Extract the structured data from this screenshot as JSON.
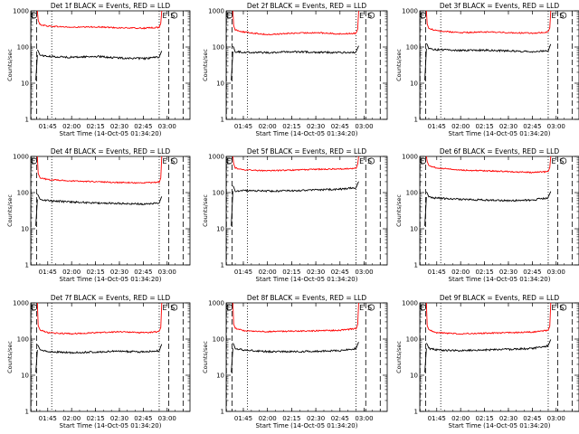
{
  "chart_data": [
    {
      "type": "line",
      "title": "Det 1f BLACK = Events, RED = LLD",
      "xlabel": "Start Time (14-Oct-05 01:34:20)",
      "ylabel": "Counts/sec",
      "yscale": "log",
      "ylim": [
        1,
        1000
      ],
      "y_ticks": [
        "1",
        "10",
        "100",
        "1000"
      ],
      "x_ticks": [
        "01:45",
        "02:00",
        "02:15",
        "02:30",
        "02:45",
        "03:00"
      ],
      "markers": [
        "E",
        "S"
      ],
      "series": [
        {
          "color": "#ff0000",
          "x": [
            "01:40",
            "01:45",
            "02:00",
            "02:15",
            "02:30",
            "02:45",
            "02:55"
          ],
          "values": [
            420,
            380,
            350,
            360,
            340,
            330,
            350
          ]
        },
        {
          "color": "#000000",
          "x": [
            "01:40",
            "01:45",
            "02:00",
            "02:15",
            "02:30",
            "02:45",
            "02:55"
          ],
          "values": [
            60,
            55,
            52,
            55,
            50,
            48,
            52
          ]
        }
      ]
    },
    {
      "type": "line",
      "title": "Det 2f BLACK = Events, RED = LLD",
      "xlabel": "Start Time (14-Oct-05 01:34:20)",
      "ylabel": "Counts/sec",
      "yscale": "log",
      "ylim": [
        1,
        1000
      ],
      "y_ticks": [
        "1",
        "10",
        "100",
        "1000"
      ],
      "x_ticks": [
        "01:45",
        "02:00",
        "02:15",
        "02:30",
        "02:45",
        "03:00"
      ],
      "markers": [
        "E",
        "S"
      ],
      "series": [
        {
          "color": "#ff0000",
          "x": [
            "01:40",
            "01:45",
            "02:00",
            "02:15",
            "02:30",
            "02:45",
            "02:55"
          ],
          "values": [
            300,
            260,
            220,
            240,
            250,
            230,
            240
          ]
        },
        {
          "color": "#000000",
          "x": [
            "01:40",
            "01:45",
            "02:00",
            "02:15",
            "02:30",
            "02:45",
            "02:55"
          ],
          "values": [
            75,
            72,
            70,
            74,
            72,
            70,
            72
          ]
        }
      ]
    },
    {
      "type": "line",
      "title": "Det 3f BLACK = Events, RED = LLD",
      "xlabel": "Start Time (14-Oct-05 01:34:20)",
      "ylabel": "Counts/sec",
      "yscale": "log",
      "ylim": [
        1,
        1000
      ],
      "y_ticks": [
        "1",
        "10",
        "100",
        "1000"
      ],
      "x_ticks": [
        "01:45",
        "02:00",
        "02:15",
        "02:30",
        "02:45",
        "03:00"
      ],
      "markers": [
        "E",
        "S"
      ],
      "series": [
        {
          "color": "#ff0000",
          "x": [
            "01:40",
            "01:45",
            "02:00",
            "02:15",
            "02:30",
            "02:45",
            "02:55"
          ],
          "values": [
            330,
            280,
            250,
            260,
            250,
            240,
            260
          ]
        },
        {
          "color": "#000000",
          "x": [
            "01:40",
            "01:45",
            "02:00",
            "02:15",
            "02:30",
            "02:45",
            "02:55"
          ],
          "values": [
            90,
            85,
            80,
            82,
            78,
            75,
            80
          ]
        }
      ]
    },
    {
      "type": "line",
      "title": "Det 4f BLACK = Events, RED = LLD",
      "xlabel": "Start Time (14-Oct-05 01:34:20)",
      "ylabel": "Counts/sec",
      "yscale": "log",
      "ylim": [
        1,
        1000
      ],
      "y_ticks": [
        "1",
        "10",
        "100",
        "1000"
      ],
      "x_ticks": [
        "01:45",
        "02:00",
        "02:15",
        "02:30",
        "02:45",
        "03:00"
      ],
      "markers": [
        "E",
        "S"
      ],
      "series": [
        {
          "color": "#ff0000",
          "x": [
            "01:40",
            "01:45",
            "02:00",
            "02:15",
            "02:30",
            "02:45",
            "02:55"
          ],
          "values": [
            260,
            230,
            210,
            200,
            190,
            185,
            195
          ]
        },
        {
          "color": "#000000",
          "x": [
            "01:40",
            "01:45",
            "02:00",
            "02:15",
            "02:30",
            "02:45",
            "02:55"
          ],
          "values": [
            65,
            60,
            55,
            52,
            50,
            48,
            52
          ]
        }
      ]
    },
    {
      "type": "line",
      "title": "Det 5f BLACK = Events, RED = LLD",
      "xlabel": "Start Time (14-Oct-05 01:34:20)",
      "ylabel": "Counts/sec",
      "yscale": "log",
      "ylim": [
        1,
        1000
      ],
      "y_ticks": [
        "1",
        "10",
        "100",
        "1000"
      ],
      "x_ticks": [
        "01:45",
        "02:00",
        "02:15",
        "02:30",
        "02:45",
        "03:00"
      ],
      "markers": [
        "E",
        "S"
      ],
      "series": [
        {
          "color": "#ff0000",
          "x": [
            "01:40",
            "01:45",
            "02:00",
            "02:15",
            "02:30",
            "02:45",
            "02:55"
          ],
          "values": [
            480,
            430,
            400,
            420,
            440,
            450,
            470
          ]
        },
        {
          "color": "#000000",
          "x": [
            "01:40",
            "01:45",
            "02:00",
            "02:15",
            "02:30",
            "02:45",
            "02:55"
          ],
          "values": [
            110,
            115,
            110,
            112,
            118,
            125,
            135
          ]
        }
      ]
    },
    {
      "type": "line",
      "title": "Det 6f BLACK = Events, RED = LLD",
      "xlabel": "Start Time (14-Oct-05 01:34:20)",
      "ylabel": "Counts/sec",
      "yscale": "log",
      "ylim": [
        1,
        1000
      ],
      "y_ticks": [
        "1",
        "10",
        "100",
        "1000"
      ],
      "x_ticks": [
        "01:45",
        "02:00",
        "02:15",
        "02:30",
        "02:45",
        "03:00"
      ],
      "markers": [
        "E",
        "S"
      ],
      "series": [
        {
          "color": "#ff0000",
          "x": [
            "01:40",
            "01:45",
            "02:00",
            "02:15",
            "02:30",
            "02:45",
            "02:55"
          ],
          "values": [
            560,
            480,
            420,
            400,
            380,
            360,
            380
          ]
        },
        {
          "color": "#000000",
          "x": [
            "01:40",
            "01:45",
            "02:00",
            "02:15",
            "02:30",
            "02:45",
            "02:55"
          ],
          "values": [
            75,
            70,
            65,
            62,
            60,
            62,
            72
          ]
        }
      ]
    },
    {
      "type": "line",
      "title": "Det 7f BLACK = Events, RED = LLD",
      "xlabel": "Start Time (14-Oct-05 01:34:20)",
      "ylabel": "Counts/sec",
      "yscale": "log",
      "ylim": [
        1,
        1000
      ],
      "y_ticks": [
        "1",
        "10",
        "100",
        "1000"
      ],
      "x_ticks": [
        "01:45",
        "02:00",
        "02:15",
        "02:30",
        "02:45",
        "03:00"
      ],
      "markers": [
        "E",
        "S"
      ],
      "series": [
        {
          "color": "#ff0000",
          "x": [
            "01:40",
            "01:45",
            "02:00",
            "02:15",
            "02:30",
            "02:45",
            "02:55"
          ],
          "values": [
            180,
            150,
            140,
            150,
            160,
            150,
            160
          ]
        },
        {
          "color": "#000000",
          "x": [
            "01:40",
            "01:45",
            "02:00",
            "02:15",
            "02:30",
            "02:45",
            "02:55"
          ],
          "values": [
            50,
            45,
            42,
            44,
            46,
            44,
            48
          ]
        }
      ]
    },
    {
      "type": "line",
      "title": "Det 8f BLACK = Events, RED = LLD",
      "xlabel": "Start Time (14-Oct-05 01:34:20)",
      "ylabel": "Counts/sec",
      "yscale": "log",
      "ylim": [
        1,
        1000
      ],
      "y_ticks": [
        "1",
        "10",
        "100",
        "1000"
      ],
      "x_ticks": [
        "01:45",
        "02:00",
        "02:15",
        "02:30",
        "02:45",
        "03:00"
      ],
      "markers": [
        "E",
        "S"
      ],
      "series": [
        {
          "color": "#ff0000",
          "x": [
            "01:40",
            "01:45",
            "02:00",
            "02:15",
            "02:30",
            "02:45",
            "02:55"
          ],
          "values": [
            200,
            170,
            160,
            165,
            170,
            175,
            195
          ]
        },
        {
          "color": "#000000",
          "x": [
            "01:40",
            "01:45",
            "02:00",
            "02:15",
            "02:30",
            "02:45",
            "02:55"
          ],
          "values": [
            55,
            50,
            45,
            45,
            46,
            48,
            55
          ]
        }
      ]
    },
    {
      "type": "line",
      "title": "Det 9f BLACK = Events, RED = LLD",
      "xlabel": "Start Time (14-Oct-05 01:34:20)",
      "ylabel": "Counts/sec",
      "yscale": "log",
      "ylim": [
        1,
        1000
      ],
      "y_ticks": [
        "1",
        "10",
        "100",
        "1000"
      ],
      "x_ticks": [
        "01:45",
        "02:00",
        "02:15",
        "02:30",
        "02:45",
        "03:00"
      ],
      "markers": [
        "E",
        "S"
      ],
      "series": [
        {
          "color": "#ff0000",
          "x": [
            "01:40",
            "01:45",
            "02:00",
            "02:15",
            "02:30",
            "02:45",
            "02:55"
          ],
          "values": [
            180,
            150,
            140,
            145,
            150,
            155,
            175
          ]
        },
        {
          "color": "#000000",
          "x": [
            "01:40",
            "01:45",
            "02:00",
            "02:15",
            "02:30",
            "02:45",
            "02:55"
          ],
          "values": [
            55,
            50,
            48,
            50,
            52,
            55,
            65
          ]
        }
      ]
    }
  ]
}
